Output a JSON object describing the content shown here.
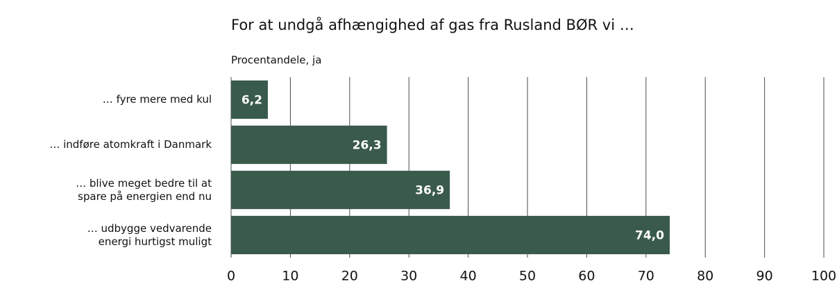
{
  "chart_data": {
    "type": "barh",
    "title": "For at undgå afhængighed af gas fra Rusland BØR vi …",
    "subtitle": "Procentandele, ja",
    "categories": [
      "… fyre mere med kul",
      "… indføre atomkraft i Danmark",
      "… blive meget bedre til at\nspare på energien end nu",
      "… udbygge vedvarende\nenergi hurtigst muligt"
    ],
    "values": [
      6.2,
      26.3,
      36.9,
      74.0
    ],
    "value_labels": [
      "6,2",
      "26,3",
      "36,9",
      "74,0"
    ],
    "color": "#3a5a4c",
    "xlim": [
      0,
      100
    ],
    "xticks": [
      0,
      10,
      20,
      30,
      40,
      50,
      60,
      70,
      80,
      90,
      100
    ],
    "grid": true
  }
}
